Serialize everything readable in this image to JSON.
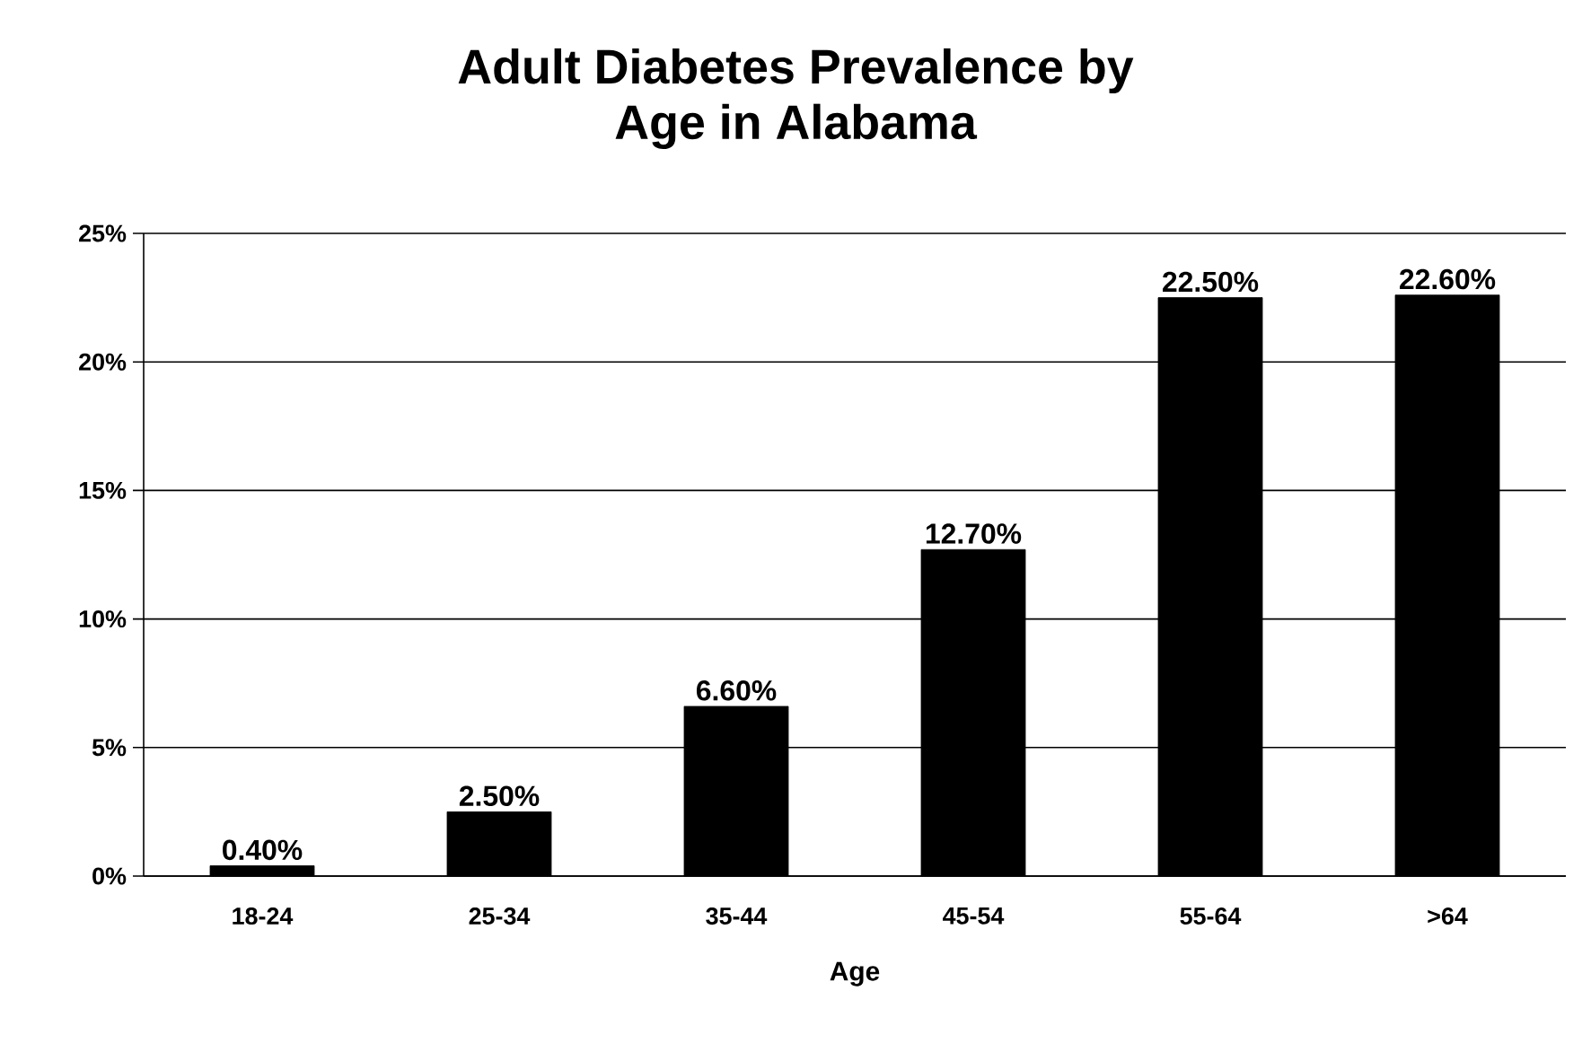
{
  "chart_data": {
    "type": "bar",
    "title": "Adult Diabetes Prevalence by Age in Alabama",
    "xlabel": "Age",
    "categories": [
      "18-24",
      "25-34",
      "35-44",
      "45-54",
      "55-64",
      ">64"
    ],
    "values": [
      0.4,
      2.5,
      6.6,
      12.7,
      22.5,
      22.6
    ],
    "value_labels": [
      "0.40%",
      "2.50%",
      "6.60%",
      "12.70%",
      "22.50%",
      "22.60%"
    ],
    "color": "#000000",
    "ylim": [
      0,
      25
    ],
    "yticks": [
      {
        "value": 0,
        "label": "0%"
      },
      {
        "value": 5,
        "label": "5%"
      },
      {
        "value": 10,
        "label": "10%"
      },
      {
        "value": 15,
        "label": "15%"
      },
      {
        "value": 20,
        "label": "20%"
      },
      {
        "value": 25,
        "label": "25%"
      }
    ],
    "grid": "y"
  }
}
